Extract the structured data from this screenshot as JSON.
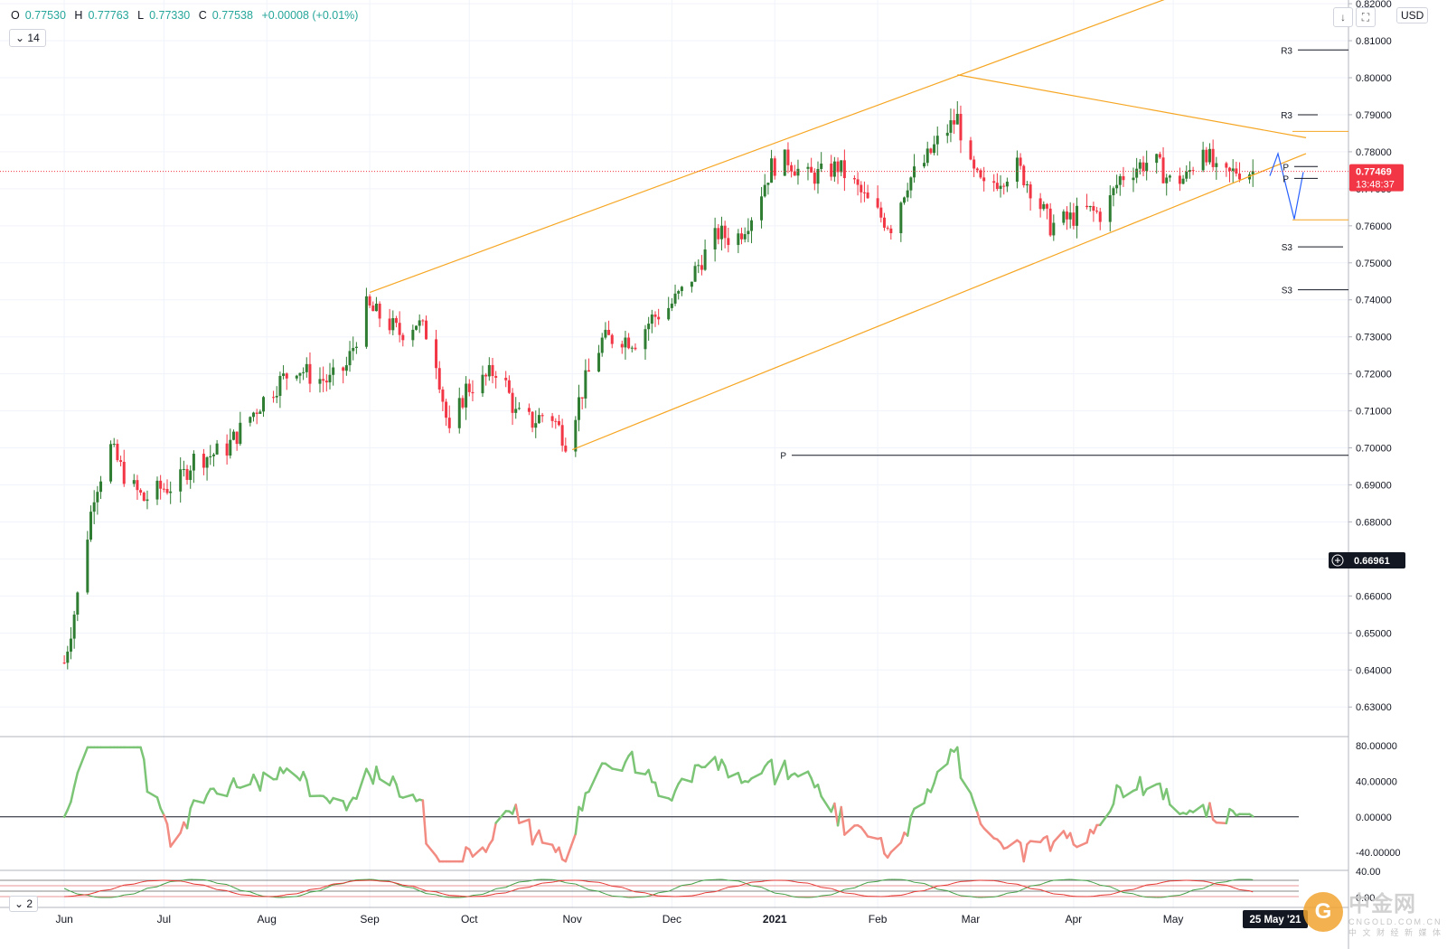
{
  "ohlc": {
    "open_label": "O",
    "open": "0.77530",
    "high_label": "H",
    "high": "0.77763",
    "low_label": "L",
    "low": "0.77330",
    "close_label": "C",
    "close": "0.77538",
    "change": "+0.00008 (+0.01%)"
  },
  "interval_main": "14",
  "interval_sub": "2",
  "currency": "USD",
  "buttons": {
    "arrow": "↓",
    "fullscreen": "⛶"
  },
  "price_badge": {
    "price": "0.77469",
    "countdown": "13:48:37"
  },
  "crosshair_badge": "0.66961",
  "date_badge": "25 May '21",
  "pivots": [
    {
      "label": "R3",
      "price": 0.8075
    },
    {
      "label": "R3",
      "price": 0.79
    },
    {
      "label": "P",
      "price": 0.776
    },
    {
      "label": "P",
      "price": 0.7728
    },
    {
      "label": "S3",
      "price": 0.7543
    },
    {
      "label": "S3",
      "price": 0.7427
    },
    {
      "label": "P",
      "price": 0.698
    }
  ],
  "watermark": {
    "cn": "中金网",
    "sub": "CNGOLD.COM.CN",
    "sub_cn": "中 文 财 经 新 媒 体"
  },
  "colors": {
    "up": "#2e7d32",
    "down": "#f23645",
    "channel": "#f6a623",
    "osc_up": "#7cc576",
    "osc_down": "#f28b82",
    "axis_text": "#131722"
  },
  "chart_data": {
    "type": "candlestick",
    "symbol_quote": "USD",
    "x_labels": [
      "Jun",
      "Jul",
      "Aug",
      "Sep",
      "Oct",
      "Nov",
      "Dec",
      "2021",
      "Feb",
      "Mar",
      "Apr",
      "May"
    ],
    "y_ticks": [
      "0.82000",
      "0.81000",
      "0.80000",
      "0.79000",
      "0.78000",
      "0.77000",
      "0.76000",
      "0.75000",
      "0.74000",
      "0.73000",
      "0.72000",
      "0.71000",
      "0.70000",
      "0.69000",
      "0.68000",
      "0.67000",
      "0.66000",
      "0.65000",
      "0.64000",
      "0.63000"
    ],
    "ylim": [
      0.622,
      0.821
    ],
    "close_points": [
      [
        "2020-06-01",
        0.642
      ],
      [
        "2020-06-05",
        0.66
      ],
      [
        "2020-06-10",
        0.688
      ],
      [
        "2020-06-15",
        0.7
      ],
      [
        "2020-06-20",
        0.691
      ],
      [
        "2020-06-25",
        0.686
      ],
      [
        "2020-06-30",
        0.689
      ],
      [
        "2020-07-05",
        0.69
      ],
      [
        "2020-07-10",
        0.697
      ],
      [
        "2020-07-15",
        0.698
      ],
      [
        "2020-07-20",
        0.7
      ],
      [
        "2020-07-25",
        0.706
      ],
      [
        "2020-07-30",
        0.712
      ],
      [
        "2020-08-05",
        0.718
      ],
      [
        "2020-08-10",
        0.722
      ],
      [
        "2020-08-15",
        0.719
      ],
      [
        "2020-08-20",
        0.718
      ],
      [
        "2020-08-25",
        0.722
      ],
      [
        "2020-08-31",
        0.738
      ],
      [
        "2020-09-05",
        0.735
      ],
      [
        "2020-09-10",
        0.731
      ],
      [
        "2020-09-15",
        0.734
      ],
      [
        "2020-09-20",
        0.729
      ],
      [
        "2020-09-25",
        0.703
      ],
      [
        "2020-09-30",
        0.716
      ],
      [
        "2020-10-05",
        0.718
      ],
      [
        "2020-10-10",
        0.722
      ],
      [
        "2020-10-15",
        0.709
      ],
      [
        "2020-10-20",
        0.707
      ],
      [
        "2020-10-25",
        0.71
      ],
      [
        "2020-10-30",
        0.702
      ],
      [
        "2020-11-05",
        0.718
      ],
      [
        "2020-11-10",
        0.729
      ],
      [
        "2020-11-15",
        0.73
      ],
      [
        "2020-11-20",
        0.729
      ],
      [
        "2020-11-25",
        0.735
      ],
      [
        "2020-11-30",
        0.738
      ],
      [
        "2020-12-05",
        0.743
      ],
      [
        "2020-12-10",
        0.751
      ],
      [
        "2020-12-15",
        0.758
      ],
      [
        "2020-12-20",
        0.756
      ],
      [
        "2020-12-25",
        0.763
      ],
      [
        "2020-12-31",
        0.776
      ],
      [
        "2021-01-05",
        0.778
      ],
      [
        "2021-01-10",
        0.773
      ],
      [
        "2021-01-15",
        0.774
      ],
      [
        "2021-01-20",
        0.776
      ],
      [
        "2021-01-25",
        0.771
      ],
      [
        "2021-01-31",
        0.764
      ],
      [
        "2021-02-05",
        0.76
      ],
      [
        "2021-02-10",
        0.772
      ],
      [
        "2021-02-15",
        0.777
      ],
      [
        "2021-02-20",
        0.784
      ],
      [
        "2021-02-25",
        0.789
      ],
      [
        "2021-03-01",
        0.775
      ],
      [
        "2021-03-05",
        0.77
      ],
      [
        "2021-03-10",
        0.773
      ],
      [
        "2021-03-15",
        0.776
      ],
      [
        "2021-03-20",
        0.769
      ],
      [
        "2021-03-25",
        0.76
      ],
      [
        "2021-03-31",
        0.762
      ],
      [
        "2021-04-05",
        0.764
      ],
      [
        "2021-04-10",
        0.763
      ],
      [
        "2021-04-15",
        0.773
      ],
      [
        "2021-04-20",
        0.776
      ],
      [
        "2021-04-25",
        0.778
      ],
      [
        "2021-04-30",
        0.772
      ],
      [
        "2021-05-05",
        0.773
      ],
      [
        "2021-05-10",
        0.782
      ],
      [
        "2021-05-15",
        0.772
      ],
      [
        "2021-05-20",
        0.775
      ],
      [
        "2021-05-25",
        0.7747
      ]
    ],
    "oscillator": {
      "yticks": [
        "80.00000",
        "40.00000",
        "0.00000",
        "-40.00000"
      ],
      "ylim": [
        -55,
        85
      ]
    },
    "sub_oscillator": {
      "yticks": [
        "40.00",
        "0.00"
      ]
    }
  }
}
